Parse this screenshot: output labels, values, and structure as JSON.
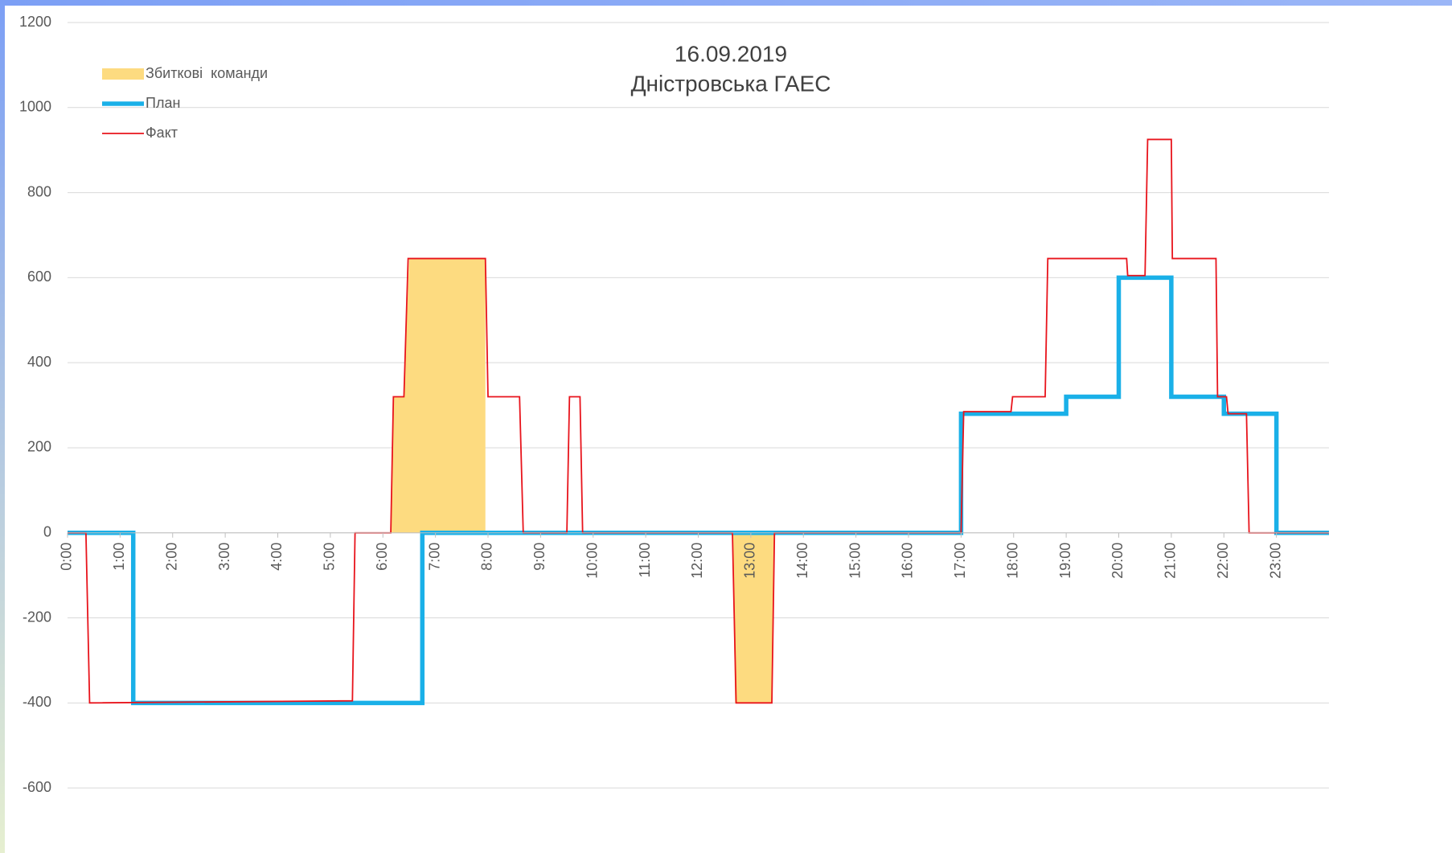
{
  "chart_data": {
    "type": "line",
    "title": "16.09.2019",
    "subtitle": "Дністровська ГАЕС",
    "xlim": [
      0,
      24
    ],
    "xticks": [
      {
        "value": 0,
        "label": "0:00"
      },
      {
        "value": 1,
        "label": "1:00"
      },
      {
        "value": 2,
        "label": "2:00"
      },
      {
        "value": 3,
        "label": "3:00"
      },
      {
        "value": 4,
        "label": "4:00"
      },
      {
        "value": 5,
        "label": "5:00"
      },
      {
        "value": 6,
        "label": "6:00"
      },
      {
        "value": 7,
        "label": "7:00"
      },
      {
        "value": 8,
        "label": "8:00"
      },
      {
        "value": 9,
        "label": "9:00"
      },
      {
        "value": 10,
        "label": "10:00"
      },
      {
        "value": 11,
        "label": "11:00"
      },
      {
        "value": 12,
        "label": "12:00"
      },
      {
        "value": 13,
        "label": "13:00"
      },
      {
        "value": 14,
        "label": "14:00"
      },
      {
        "value": 15,
        "label": "15:00"
      },
      {
        "value": 16,
        "label": "16:00"
      },
      {
        "value": 17,
        "label": "17:00"
      },
      {
        "value": 18,
        "label": "18:00"
      },
      {
        "value": 19,
        "label": "19:00"
      },
      {
        "value": 20,
        "label": "20:00"
      },
      {
        "value": 21,
        "label": "21:00"
      },
      {
        "value": 22,
        "label": "22:00"
      },
      {
        "value": 23,
        "label": "23:00"
      }
    ],
    "ylim": [
      -700,
      1200
    ],
    "yticks": [
      -600,
      -400,
      -200,
      0,
      200,
      400,
      600,
      800,
      1000,
      1200
    ],
    "grid": true,
    "legend": "upper left",
    "series": [
      {
        "name": "Збиткові  команди",
        "kind": "area",
        "color": "#fddb80",
        "x": [
          6.15,
          6.2,
          6.4,
          6.5,
          7.95,
          7.95,
          10,
          12.65,
          12.7,
          13.4,
          13.45
        ],
        "values": [
          0,
          320,
          320,
          645,
          645,
          0,
          null,
          0,
          -400,
          -400,
          0
        ]
      },
      {
        "name": "План",
        "kind": "line",
        "color": "#1ab0e8",
        "x": [
          0,
          1.25,
          1.25,
          6.75,
          6.75,
          17,
          17,
          19,
          19,
          20,
          20,
          21,
          21,
          22,
          22,
          23,
          23,
          24
        ],
        "values": [
          0,
          0,
          -400,
          -400,
          0,
          0,
          280,
          280,
          320,
          320,
          600,
          600,
          320,
          320,
          280,
          280,
          0,
          0
        ]
      },
      {
        "name": "Факт",
        "kind": "line",
        "color": "#e8141c",
        "x": [
          0,
          0.35,
          0.42,
          5.42,
          5.47,
          6.15,
          6.2,
          6.4,
          6.48,
          7.95,
          8.0,
          8.6,
          8.67,
          9.5,
          9.55,
          9.75,
          9.8,
          12.65,
          12.72,
          13.4,
          13.45,
          17,
          17.05,
          17.95,
          17.98,
          18.6,
          18.65,
          20.15,
          20.17,
          20.5,
          20.55,
          21.0,
          21.02,
          21.85,
          21.88,
          22.05,
          22.08,
          22.43,
          22.48,
          24
        ],
        "values": [
          0,
          0,
          -400,
          -395,
          0,
          0,
          320,
          320,
          645,
          645,
          320,
          320,
          0,
          0,
          320,
          320,
          0,
          0,
          -400,
          -400,
          0,
          0,
          285,
          285,
          320,
          320,
          645,
          645,
          605,
          605,
          925,
          925,
          645,
          645,
          320,
          320,
          280,
          280,
          0,
          0
        ]
      }
    ]
  }
}
